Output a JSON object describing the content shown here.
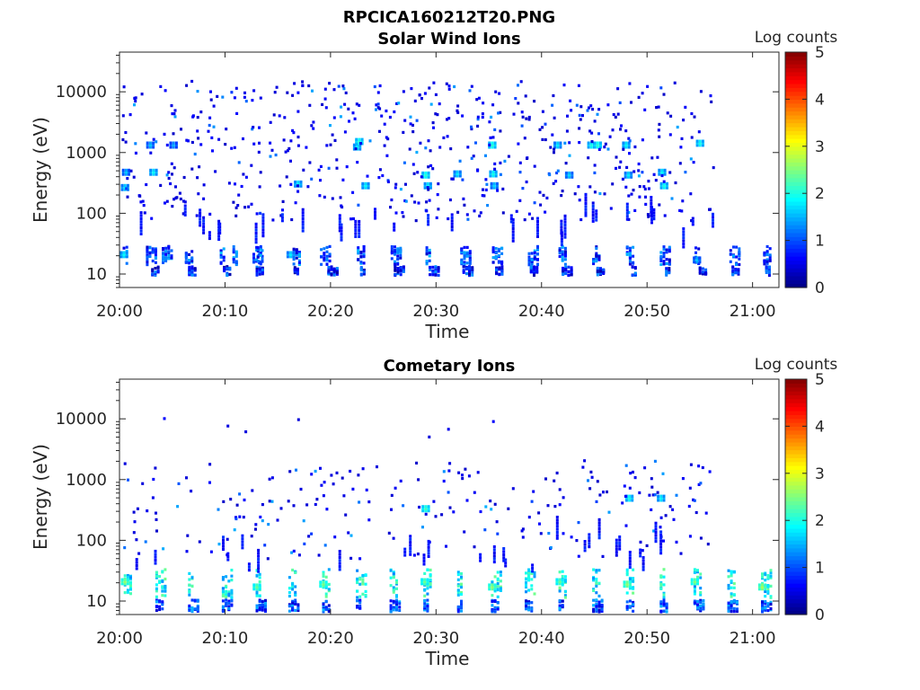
{
  "figure": {
    "title": "RPCICA160212T20.PNG"
  },
  "colormap": {
    "name": "jet",
    "stops": [
      "#00007f",
      "#0000ff",
      "#007fff",
      "#00ffff",
      "#7fff7f",
      "#ffff00",
      "#ff7f00",
      "#ff0000",
      "#7f0000"
    ]
  },
  "chart_data": [
    {
      "type": "heatmap",
      "title": "Solar Wind Ions",
      "xlabel": "Time",
      "ylabel": "Energy (eV)",
      "x_ticks": [
        "20:00",
        "20:10",
        "20:20",
        "20:30",
        "20:40",
        "20:50",
        "21:00"
      ],
      "x_tick_minutes": [
        0,
        10,
        20,
        30,
        40,
        50,
        60
      ],
      "xlim_minutes": [
        0,
        62.5
      ],
      "y_scale": "log",
      "y_ticks": [
        "10",
        "100",
        "1000",
        "10000"
      ],
      "y_tick_values": [
        10,
        100,
        1000,
        10000
      ],
      "ylim": [
        6,
        45000
      ],
      "colorbar": {
        "label": "Log counts",
        "ticks": [
          "0",
          "1",
          "2",
          "3",
          "4",
          "5"
        ],
        "range": [
          0,
          5
        ]
      },
      "bands": [
        {
          "energy": [
            15,
            30
          ],
          "minutes": [
            0.3,
            2.5,
            4.0,
            6.2,
            9.5,
            10.7,
            12.6,
            13.0,
            16.4,
            19.0,
            22.5,
            25.7,
            29.0,
            32.3,
            35.3,
            38.7,
            41.6,
            44.8,
            48.0,
            51.2,
            54.5,
            57.8,
            61.0
          ],
          "level": 0.9
        },
        {
          "energy": [
            10,
            14
          ],
          "minutes": [
            3.0,
            6.5,
            9.8,
            12.9,
            16.5,
            19.7,
            22.8,
            26.0,
            29.3,
            32.5,
            35.6,
            38.9,
            41.9,
            45.2,
            48.5,
            51.7,
            54.9,
            58.0,
            61.2
          ],
          "level": 0.7
        }
      ],
      "peaks": [
        {
          "t": 0.3,
          "e": 22,
          "level": 1.9
        },
        {
          "t": 0.4,
          "e": 280,
          "level": 1.8
        },
        {
          "t": 0.5,
          "e": 500,
          "level": 1.6
        },
        {
          "t": 2.8,
          "e": 1400,
          "level": 1.6
        },
        {
          "t": 3.1,
          "e": 500,
          "level": 1.9
        },
        {
          "t": 5.0,
          "e": 1400,
          "level": 1.5
        },
        {
          "t": 16.1,
          "e": 22,
          "level": 1.8
        },
        {
          "t": 16.8,
          "e": 320,
          "level": 1.9
        },
        {
          "t": 22.4,
          "e": 1300,
          "level": 1.9
        },
        {
          "t": 22.6,
          "e": 1600,
          "level": 2.1
        },
        {
          "t": 23.2,
          "e": 300,
          "level": 1.9
        },
        {
          "t": 28.9,
          "e": 450,
          "level": 2.1
        },
        {
          "t": 29.1,
          "e": 300,
          "level": 1.9
        },
        {
          "t": 31.9,
          "e": 470,
          "level": 1.8
        },
        {
          "t": 35.2,
          "e": 1400,
          "level": 2.1
        },
        {
          "t": 35.3,
          "e": 470,
          "level": 2.0
        },
        {
          "t": 35.4,
          "e": 300,
          "level": 1.7
        },
        {
          "t": 41.4,
          "e": 1400,
          "level": 1.8
        },
        {
          "t": 42.5,
          "e": 450,
          "level": 1.7
        },
        {
          "t": 44.6,
          "e": 1400,
          "level": 2.0
        },
        {
          "t": 45.2,
          "e": 1400,
          "level": 2.1
        },
        {
          "t": 47.9,
          "e": 1400,
          "level": 1.9
        },
        {
          "t": 48.1,
          "e": 450,
          "level": 1.8
        },
        {
          "t": 51.3,
          "e": 500,
          "level": 1.9
        },
        {
          "t": 51.5,
          "e": 300,
          "level": 2.0
        },
        {
          "t": 54.9,
          "e": 1500,
          "level": 2.0
        },
        {
          "t": 54.6,
          "e": 18,
          "level": 1.6
        }
      ],
      "scatter_density": 0.85
    },
    {
      "type": "heatmap",
      "title": "Cometary Ions",
      "xlabel": "Time",
      "ylabel": "Energy (eV)",
      "x_ticks": [
        "20:00",
        "20:10",
        "20:20",
        "20:30",
        "20:40",
        "20:50",
        "21:00"
      ],
      "x_tick_minutes": [
        0,
        10,
        20,
        30,
        40,
        50,
        60
      ],
      "xlim_minutes": [
        0,
        62.5
      ],
      "y_scale": "log",
      "y_ticks": [
        "10",
        "100",
        "1000",
        "10000"
      ],
      "y_tick_values": [
        10,
        100,
        1000,
        10000
      ],
      "ylim": [
        6,
        45000
      ],
      "colorbar": {
        "label": "Log counts",
        "ticks": [
          "0",
          "1",
          "2",
          "3",
          "4",
          "5"
        ],
        "range": [
          0,
          5
        ]
      },
      "bands": [
        {
          "energy": [
            12,
            35
          ],
          "minutes": [
            0.4,
            3.4,
            6.5,
            9.7,
            12.9,
            16.0,
            19.2,
            22.4,
            25.6,
            28.8,
            32.0,
            35.2,
            38.4,
            41.6,
            44.8,
            48.0,
            51.2,
            54.4,
            57.6,
            60.8
          ],
          "level": 1.8
        },
        {
          "energy": [
            7,
            11
          ],
          "minutes": [
            3.4,
            6.5,
            9.7,
            12.9,
            16.0,
            19.2,
            22.4,
            25.6,
            28.8,
            32.0,
            35.2,
            38.4,
            41.6,
            44.8,
            48.0,
            51.2,
            54.4,
            57.6,
            60.8
          ],
          "level": 0.9
        }
      ],
      "peaks": [
        {
          "t": 0.4,
          "e": 22,
          "level": 2.6
        },
        {
          "t": 12.9,
          "e": 18,
          "level": 2.4
        },
        {
          "t": 19.2,
          "e": 20,
          "level": 2.5
        },
        {
          "t": 28.8,
          "e": 22,
          "level": 2.4
        },
        {
          "t": 28.9,
          "e": 350,
          "level": 2.2
        },
        {
          "t": 35.2,
          "e": 18,
          "level": 2.6
        },
        {
          "t": 41.6,
          "e": 22,
          "level": 2.4
        },
        {
          "t": 48.0,
          "e": 20,
          "level": 2.6
        },
        {
          "t": 51.2,
          "e": 520,
          "level": 1.9
        },
        {
          "t": 54.4,
          "e": 22,
          "level": 2.5
        },
        {
          "t": 60.8,
          "e": 18,
          "level": 2.7
        },
        {
          "t": 48.2,
          "e": 520,
          "level": 2.0
        }
      ],
      "scatter_density": 0.35
    }
  ]
}
